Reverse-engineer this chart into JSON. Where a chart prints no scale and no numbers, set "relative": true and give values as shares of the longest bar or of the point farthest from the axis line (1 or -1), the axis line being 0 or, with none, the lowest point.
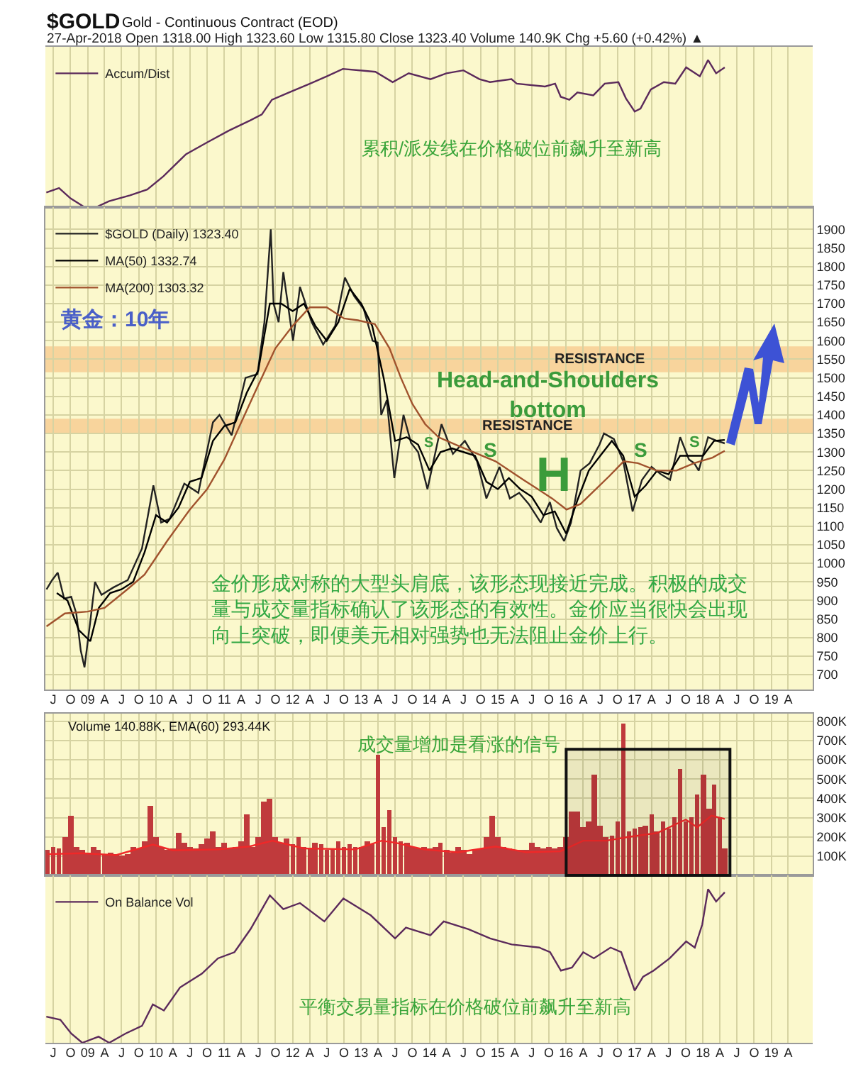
{
  "chart_data": [
    {
      "type": "line",
      "title": "$GOLD",
      "subtitle": "Gold - Continuous Contract (EOD)",
      "annotations": [
        "27-Apr-2018 Open 1318.00 High 1323.60 Low 1315.80 Close 1323.40 Volume 140.9K Chg +5.60 (+0.42%) ▲",
        "累积/派发线在价格破位前飙升至新高"
      ],
      "relative": true,
      "x": [
        "2008-05-25",
        "2008-08-01",
        "2008-10-01",
        "2008-12-15",
        "2009-02-15",
        "2009-04-25",
        "2009-08-15",
        "2009-11-15",
        "2010-02-10",
        "2010-06-10",
        "2010-10-01",
        "2011-01-25",
        "2011-05-20",
        "2011-07-20",
        "2011-09-12",
        "2011-12-12",
        "2012-04-03",
        "2012-07-03",
        "2012-09-25",
        "2012-12-25",
        "2013-03-18",
        "2013-06-18",
        "2013-09-12",
        "2014-01-06",
        "2014-04-01",
        "2014-07-01",
        "2014-09-25",
        "2014-11-20",
        "2015-03-15",
        "2015-04-12",
        "2015-09-10",
        "2015-11-03",
        "2015-12-03",
        "2016-01-18",
        "2016-03-01",
        "2016-05-25",
        "2016-07-25",
        "2016-10-06",
        "2016-11-15",
        "2017-01-01",
        "2017-02-01",
        "2017-03-28",
        "2017-06-06",
        "2017-08-06",
        "2017-10-03",
        "2017-12-15",
        "2018-01-28",
        "2018-03-12",
        "2018-04-27"
      ],
      "series": [
        {
          "name": "Accum/Dist",
          "color": "#5b2a5b",
          "values": [
            0.1,
            0.13,
            0.06,
            0,
            0,
            0.04,
            0.08,
            0.12,
            0.21,
            0.36,
            0.44,
            0.52,
            0.59,
            0.63,
            0.73,
            0.78,
            0.84,
            0.89,
            0.94,
            0.93,
            0.92,
            0.85,
            0.91,
            0.87,
            0.91,
            0.93,
            0.87,
            0.85,
            0.87,
            0.84,
            0.82,
            0.84,
            0.75,
            0.73,
            0.78,
            0.76,
            0.84,
            0.85,
            0.74,
            0.65,
            0.67,
            0.8,
            0.85,
            0.84,
            0.95,
            0.89,
            1,
            0.91,
            0.95
          ]
        }
      ],
      "xlim": [
        "2008-05-20",
        "2019-08-10"
      ],
      "xticks": [
        {
          "value": "2008-07",
          "label": "J"
        },
        {
          "value": "2008-10",
          "label": "O"
        },
        {
          "value": "2009-01",
          "label": "09"
        },
        {
          "value": "2009-04",
          "label": "A"
        },
        {
          "value": "2009-07",
          "label": "J"
        },
        {
          "value": "2009-10",
          "label": "O"
        },
        {
          "value": "2010-01",
          "label": "10"
        },
        {
          "value": "2010-04",
          "label": "A"
        },
        {
          "value": "2010-07",
          "label": "J"
        },
        {
          "value": "2010-10",
          "label": "O"
        },
        {
          "value": "2011-01",
          "label": "11"
        },
        {
          "value": "2011-04",
          "label": "A"
        },
        {
          "value": "2011-07",
          "label": "J"
        },
        {
          "value": "2011-10",
          "label": "O"
        },
        {
          "value": "2012-01",
          "label": "12"
        },
        {
          "value": "2012-04",
          "label": "A"
        },
        {
          "value": "2012-07",
          "label": "J"
        },
        {
          "value": "2012-10",
          "label": "O"
        },
        {
          "value": "2013-01",
          "label": "13"
        },
        {
          "value": "2013-04",
          "label": "A"
        },
        {
          "value": "2013-07",
          "label": "J"
        },
        {
          "value": "2013-10",
          "label": "O"
        },
        {
          "value": "2014-01",
          "label": "14"
        },
        {
          "value": "2014-04",
          "label": "A"
        },
        {
          "value": "2014-07",
          "label": "J"
        },
        {
          "value": "2014-10",
          "label": "O"
        },
        {
          "value": "2015-01",
          "label": "15"
        },
        {
          "value": "2015-04",
          "label": "A"
        },
        {
          "value": "2015-07",
          "label": "J"
        },
        {
          "value": "2015-10",
          "label": "O"
        },
        {
          "value": "2016-01",
          "label": "16"
        },
        {
          "value": "2016-04",
          "label": "A"
        },
        {
          "value": "2016-07",
          "label": "J"
        },
        {
          "value": "2016-10",
          "label": "O"
        },
        {
          "value": "2017-01",
          "label": "17"
        },
        {
          "value": "2017-04",
          "label": "A"
        },
        {
          "value": "2017-07",
          "label": "J"
        },
        {
          "value": "2017-10",
          "label": "O"
        },
        {
          "value": "2018-01",
          "label": "18"
        },
        {
          "value": "2018-04",
          "label": "A"
        },
        {
          "value": "2018-07",
          "label": "J"
        },
        {
          "value": "2018-10",
          "label": "O"
        },
        {
          "value": "2019-01",
          "label": "19"
        },
        {
          "value": "2019-04",
          "label": "A"
        }
      ],
      "grid": "x",
      "legend": "top left",
      "tick_labels": false
    },
    {
      "type": "line",
      "annotations": [
        "黄金：10年",
        "Head-and-Shoulders\nbottom",
        "S",
        "S",
        "H",
        "S",
        "S",
        "金价形成对称的大型头肩底，该形态现接近完成。积极的成交量与成交量指标确认了该形态的有效性。金价应当很快会出现向上突破，即便美元相对强势也无法阻止金价上行。"
      ],
      "series": [
        {
          "name": "$GOLD (Daily) 1323.40",
          "color": "#222222",
          "x": [
            "2008-05-26",
            "2008-06-25",
            "2008-07-25",
            "2008-08-28",
            "2008-10-05",
            "2008-11-01",
            "2008-11-25",
            "2008-12-15",
            "2009-01-14",
            "2009-02-09",
            "2009-03-16",
            "2009-05-18",
            "2009-08-03",
            "2009-10-18",
            "2009-12-18",
            "2010-01-28",
            "2010-03-15",
            "2010-06-01",
            "2010-08-15",
            "2010-11-01",
            "2010-12-06",
            "2011-02-09",
            "2011-04-24",
            "2011-06-27",
            "2011-08-03",
            "2011-09-06",
            "2011-09-21",
            "2011-10-18",
            "2011-11-12",
            "2012-01-03",
            "2012-02-09",
            "2012-04-12",
            "2012-06-12",
            "2012-08-15",
            "2012-10-06",
            "2012-11-25",
            "2013-01-15",
            "2013-03-03",
            "2013-03-30",
            "2013-04-18",
            "2013-05-18",
            "2013-06-27",
            "2013-08-15",
            "2013-09-24",
            "2013-11-01",
            "2013-12-21",
            "2014-03-06",
            "2014-05-06",
            "2014-07-09",
            "2014-09-12",
            "2014-11-01",
            "2015-01-10",
            "2015-03-06",
            "2015-04-25",
            "2015-06-15",
            "2015-08-18",
            "2015-10-06",
            "2015-11-12",
            "2015-12-21",
            "2016-01-27",
            "2016-03-18",
            "2016-05-06",
            "2016-06-27",
            "2016-07-21",
            "2016-09-12",
            "2016-11-01",
            "2016-12-21",
            "2017-02-09",
            "2017-04-01",
            "2017-05-21",
            "2017-07-09",
            "2017-09-01",
            "2017-10-18",
            "2017-11-15",
            "2017-12-09",
            "2018-01-28",
            "2018-03-18",
            "2018-04-27"
          ],
          "values": [
            930,
            955,
            975,
            905,
            910,
            865,
            765,
            720,
            840,
            950,
            915,
            935,
            955,
            1040,
            1210,
            1110,
            1120,
            1215,
            1190,
            1380,
            1400,
            1345,
            1500,
            1510,
            1650,
            1900,
            1700,
            1650,
            1785,
            1600,
            1745,
            1650,
            1590,
            1640,
            1770,
            1720,
            1685,
            1600,
            1595,
            1400,
            1440,
            1230,
            1400,
            1325,
            1300,
            1200,
            1375,
            1295,
            1330,
            1275,
            1175,
            1260,
            1175,
            1190,
            1160,
            1110,
            1165,
            1095,
            1060,
            1110,
            1250,
            1270,
            1320,
            1350,
            1335,
            1275,
            1140,
            1225,
            1260,
            1240,
            1225,
            1340,
            1280,
            1270,
            1250,
            1340,
            1330,
            1323.4
          ]
        },
        {
          "name": "MA(50) 1332.74",
          "color": "#000000",
          "x": [
            "2008-07-20",
            "2008-09-15",
            "2008-11-15",
            "2009-01-15",
            "2009-03-01",
            "2009-05-01",
            "2009-07-01",
            "2009-09-01",
            "2009-11-01",
            "2010-01-01",
            "2010-03-01",
            "2010-05-01",
            "2010-07-01",
            "2010-09-01",
            "2010-11-01",
            "2011-01-01",
            "2011-03-01",
            "2011-05-01",
            "2011-07-01",
            "2011-09-01",
            "2011-11-01",
            "2012-01-01",
            "2012-03-01",
            "2012-05-01",
            "2012-07-01",
            "2012-09-01",
            "2012-11-01",
            "2013-01-01",
            "2013-03-01",
            "2013-05-01",
            "2013-07-01",
            "2013-09-01",
            "2013-11-01",
            "2014-01-01",
            "2014-03-01",
            "2014-05-01",
            "2014-07-01",
            "2014-09-01",
            "2014-11-01",
            "2015-01-01",
            "2015-03-01",
            "2015-05-01",
            "2015-07-01",
            "2015-09-01",
            "2015-11-01",
            "2016-01-01",
            "2016-03-01",
            "2016-05-01",
            "2016-07-01",
            "2016-09-01",
            "2016-11-01",
            "2017-01-01",
            "2017-03-01",
            "2017-05-01",
            "2017-07-01",
            "2017-09-01",
            "2017-11-01",
            "2018-01-01",
            "2018-03-01",
            "2018-04-27"
          ],
          "values": [
            920,
            900,
            820,
            790,
            880,
            920,
            930,
            950,
            1030,
            1130,
            1110,
            1150,
            1220,
            1230,
            1330,
            1370,
            1380,
            1460,
            1520,
            1700,
            1700,
            1680,
            1700,
            1640,
            1600,
            1650,
            1740,
            1700,
            1640,
            1500,
            1330,
            1340,
            1320,
            1250,
            1300,
            1310,
            1300,
            1290,
            1220,
            1200,
            1230,
            1200,
            1180,
            1130,
            1140,
            1080,
            1170,
            1250,
            1290,
            1330,
            1290,
            1180,
            1210,
            1250,
            1240,
            1290,
            1290,
            1290,
            1330,
            1332.74
          ]
        },
        {
          "name": "MA(200) 1303.32",
          "color": "#a0522d",
          "x": [
            "2008-05-26",
            "2008-09-01",
            "2009-01-01",
            "2009-04-01",
            "2009-08-01",
            "2009-11-01",
            "2010-03-01",
            "2010-07-01",
            "2010-10-01",
            "2011-01-01",
            "2011-04-01",
            "2011-07-01",
            "2011-10-01",
            "2012-01-01",
            "2012-04-01",
            "2012-07-01",
            "2012-10-01",
            "2012-12-15",
            "2013-03-15",
            "2013-06-01",
            "2013-08-01",
            "2013-10-01",
            "2013-12-09",
            "2014-02-18",
            "2014-06-12",
            "2014-12-20",
            "2015-05-18",
            "2015-10-18",
            "2016-01-03",
            "2016-03-18",
            "2016-08-18",
            "2016-11-03",
            "2017-01-18",
            "2017-04-28",
            "2017-08-12",
            "2017-11-15",
            "2018-02-21",
            "2018-04-27"
          ],
          "values": [
            830,
            865,
            870,
            880,
            930,
            970,
            1060,
            1145,
            1200,
            1280,
            1380,
            1480,
            1580,
            1640,
            1690,
            1690,
            1660,
            1655,
            1645,
            1580,
            1500,
            1430,
            1375,
            1340,
            1315,
            1275,
            1225,
            1175,
            1145,
            1160,
            1235,
            1275,
            1270,
            1250,
            1250,
            1270,
            1285,
            1303.32
          ]
        }
      ],
      "bands": [
        {
          "axis": "y",
          "from": 1515,
          "to": 1585,
          "label": "RESISTANCE",
          "color": "#f8d49c"
        },
        {
          "axis": "y",
          "from": 1350,
          "to": 1390,
          "label": "RESISTANCE",
          "color": "#f8d49c"
        }
      ],
      "xlim": [
        "2008-05-20",
        "2019-08-10"
      ],
      "xticks": [
        {
          "value": "2008-07",
          "label": "J"
        },
        {
          "value": "2008-10",
          "label": "O"
        },
        {
          "value": "2009-01",
          "label": "09"
        },
        {
          "value": "2009-04",
          "label": "A"
        },
        {
          "value": "2009-07",
          "label": "J"
        },
        {
          "value": "2009-10",
          "label": "O"
        },
        {
          "value": "2010-01",
          "label": "10"
        },
        {
          "value": "2010-04",
          "label": "A"
        },
        {
          "value": "2010-07",
          "label": "J"
        },
        {
          "value": "2010-10",
          "label": "O"
        },
        {
          "value": "2011-01",
          "label": "11"
        },
        {
          "value": "2011-04",
          "label": "A"
        },
        {
          "value": "2011-07",
          "label": "J"
        },
        {
          "value": "2011-10",
          "label": "O"
        },
        {
          "value": "2012-01",
          "label": "12"
        },
        {
          "value": "2012-04",
          "label": "A"
        },
        {
          "value": "2012-07",
          "label": "J"
        },
        {
          "value": "2012-10",
          "label": "O"
        },
        {
          "value": "2013-01",
          "label": "13"
        },
        {
          "value": "2013-04",
          "label": "A"
        },
        {
          "value": "2013-07",
          "label": "J"
        },
        {
          "value": "2013-10",
          "label": "O"
        },
        {
          "value": "2014-01",
          "label": "14"
        },
        {
          "value": "2014-04",
          "label": "A"
        },
        {
          "value": "2014-07",
          "label": "J"
        },
        {
          "value": "2014-10",
          "label": "O"
        },
        {
          "value": "2015-01",
          "label": "15"
        },
        {
          "value": "2015-04",
          "label": "A"
        },
        {
          "value": "2015-07",
          "label": "J"
        },
        {
          "value": "2015-10",
          "label": "O"
        },
        {
          "value": "2016-01",
          "label": "16"
        },
        {
          "value": "2016-04",
          "label": "A"
        },
        {
          "value": "2016-07",
          "label": "J"
        },
        {
          "value": "2016-10",
          "label": "O"
        },
        {
          "value": "2017-01",
          "label": "17"
        },
        {
          "value": "2017-04",
          "label": "A"
        },
        {
          "value": "2017-07",
          "label": "J"
        },
        {
          "value": "2017-10",
          "label": "O"
        },
        {
          "value": "2018-01",
          "label": "18"
        },
        {
          "value": "2018-04",
          "label": "A"
        },
        {
          "value": "2018-07",
          "label": "J"
        },
        {
          "value": "2018-10",
          "label": "O"
        },
        {
          "value": "2019-01",
          "label": "19"
        },
        {
          "value": "2019-04",
          "label": "A"
        }
      ],
      "ylim": [
        660,
        1960
      ],
      "yticks": [
        700,
        750,
        800,
        850,
        900,
        950,
        1000,
        1050,
        1100,
        1150,
        1200,
        1250,
        1300,
        1350,
        1400,
        1450,
        1500,
        1550,
        1600,
        1650,
        1700,
        1750,
        1800,
        1850,
        1900
      ],
      "grid": true,
      "legend": "top left"
    },
    {
      "type": "bar",
      "title": "Volume 140.88K, EMA(60) 293.44K",
      "annotations": [
        "成交量增加是看涨的信号"
      ],
      "series": [
        {
          "type": "bar",
          "color": "#c03a3c",
          "x": [
            "2008-06",
            "2008-07",
            "2008-08",
            "2008-09",
            "2008-10",
            "2008-11",
            "2008-12",
            "2009-01",
            "2009-02",
            "2009-03",
            "2009-04",
            "2009-05",
            "2009-06",
            "2009-07",
            "2009-08",
            "2009-09",
            "2009-10",
            "2009-11",
            "2009-12",
            "2010-01",
            "2010-02",
            "2010-03",
            "2010-04",
            "2010-05",
            "2010-06",
            "2010-07",
            "2010-08",
            "2010-09",
            "2010-10",
            "2010-11",
            "2010-12",
            "2011-01",
            "2011-02",
            "2011-03",
            "2011-04",
            "2011-05",
            "2011-06",
            "2011-07",
            "2011-08",
            "2011-09",
            "2011-10",
            "2011-11",
            "2011-12",
            "2012-01",
            "2012-02",
            "2012-03",
            "2012-04",
            "2012-05",
            "2012-06",
            "2012-07",
            "2012-08",
            "2012-09",
            "2012-10",
            "2012-11",
            "2012-12",
            "2013-01",
            "2013-02",
            "2013-03",
            "2013-04",
            "2013-05",
            "2013-06",
            "2013-07",
            "2013-08",
            "2013-09",
            "2013-10",
            "2013-11",
            "2013-12",
            "2014-01",
            "2014-02",
            "2014-03",
            "2014-04",
            "2014-05",
            "2014-06",
            "2014-07",
            "2014-08",
            "2014-09",
            "2014-10",
            "2014-11",
            "2014-12",
            "2015-01",
            "2015-02",
            "2015-03",
            "2015-04",
            "2015-05",
            "2015-06",
            "2015-07",
            "2015-08",
            "2015-09",
            "2015-10",
            "2015-11",
            "2015-12",
            "2016-01",
            "2016-02",
            "2016-03",
            "2016-04",
            "2016-05",
            "2016-06",
            "2016-07",
            "2016-08",
            "2016-09",
            "2016-10",
            "2016-11",
            "2016-12",
            "2017-01",
            "2017-02",
            "2017-03",
            "2017-04",
            "2017-05",
            "2017-06",
            "2017-07",
            "2017-08",
            "2017-09",
            "2017-10",
            "2017-11",
            "2017-12",
            "2018-01",
            "2018-02",
            "2018-03",
            "2018-04",
            "2018-04-27"
          ],
          "values": [
            130000,
            150000,
            140000,
            200000,
            310000,
            150000,
            130000,
            120000,
            150000,
            130000,
            110000,
            120000,
            110000,
            100000,
            110000,
            150000,
            140000,
            180000,
            360000,
            200000,
            150000,
            130000,
            140000,
            220000,
            170000,
            150000,
            140000,
            160000,
            190000,
            230000,
            150000,
            170000,
            140000,
            150000,
            180000,
            320000,
            150000,
            200000,
            380000,
            400000,
            200000,
            170000,
            190000,
            160000,
            200000,
            150000,
            140000,
            170000,
            160000,
            130000,
            140000,
            180000,
            150000,
            160000,
            150000,
            150000,
            180000,
            160000,
            630000,
            250000,
            340000,
            200000,
            180000,
            170000,
            150000,
            140000,
            150000,
            140000,
            150000,
            170000,
            130000,
            120000,
            150000,
            130000,
            110000,
            130000,
            140000,
            200000,
            310000,
            200000,
            150000,
            140000,
            130000,
            130000,
            130000,
            170000,
            150000,
            140000,
            150000,
            140000,
            150000,
            200000,
            330000,
            330000,
            250000,
            280000,
            520000,
            260000,
            200000,
            210000,
            280000,
            790000,
            230000,
            240000,
            250000,
            260000,
            320000,
            230000,
            280000,
            240000,
            300000,
            550000,
            280000,
            300000,
            420000,
            520000,
            350000,
            470000,
            300000,
            140880
          ]
        },
        {
          "type": "line",
          "color": "#f02828",
          "x": [
            "2008-06-01",
            "2008-12-01",
            "2009-06-01",
            "2009-12-15",
            "2010-04-01",
            "2010-12-01",
            "2011-05-15",
            "2011-09-15",
            "2012-03-01",
            "2012-12-01",
            "2013-04-20",
            "2013-07-01",
            "2013-12-01",
            "2014-06-01",
            "2014-12-20",
            "2015-06-01",
            "2015-12-01",
            "2016-04-01",
            "2016-08-01",
            "2016-12-01",
            "2017-05-01",
            "2017-10-01",
            "2017-12-01",
            "2018-02-15",
            "2018-04-27"
          ],
          "values": [
            110000,
            115000,
            105000,
            160000,
            130000,
            135000,
            150000,
            180000,
            140000,
            135000,
            180000,
            170000,
            135000,
            120000,
            150000,
            120000,
            125000,
            180000,
            180000,
            200000,
            220000,
            290000,
            250000,
            310000,
            293440
          ]
        }
      ],
      "bands": [
        {
          "axis": "x",
          "from": "2016-01-01",
          "to": "2018-05-25",
          "color": "#111111"
        }
      ],
      "xlim": [
        "2008-05-20",
        "2019-08-10"
      ],
      "xticks": [
        {
          "value": "2008-07",
          "label": "J"
        },
        {
          "value": "2008-10",
          "label": "O"
        },
        {
          "value": "2009-01",
          "label": "09"
        },
        {
          "value": "2009-04",
          "label": "A"
        },
        {
          "value": "2009-07",
          "label": "J"
        },
        {
          "value": "2009-10",
          "label": "O"
        },
        {
          "value": "2010-01",
          "label": "10"
        },
        {
          "value": "2010-04",
          "label": "A"
        },
        {
          "value": "2010-07",
          "label": "J"
        },
        {
          "value": "2010-10",
          "label": "O"
        },
        {
          "value": "2011-01",
          "label": "11"
        },
        {
          "value": "2011-04",
          "label": "A"
        },
        {
          "value": "2011-07",
          "label": "J"
        },
        {
          "value": "2011-10",
          "label": "O"
        },
        {
          "value": "2012-01",
          "label": "12"
        },
        {
          "value": "2012-04",
          "label": "A"
        },
        {
          "value": "2012-07",
          "label": "J"
        },
        {
          "value": "2012-10",
          "label": "O"
        },
        {
          "value": "2013-01",
          "label": "13"
        },
        {
          "value": "2013-04",
          "label": "A"
        },
        {
          "value": "2013-07",
          "label": "J"
        },
        {
          "value": "2013-10",
          "label": "O"
        },
        {
          "value": "2014-01",
          "label": "14"
        },
        {
          "value": "2014-04",
          "label": "A"
        },
        {
          "value": "2014-07",
          "label": "J"
        },
        {
          "value": "2014-10",
          "label": "O"
        },
        {
          "value": "2015-01",
          "label": "15"
        },
        {
          "value": "2015-04",
          "label": "A"
        },
        {
          "value": "2015-07",
          "label": "J"
        },
        {
          "value": "2015-10",
          "label": "O"
        },
        {
          "value": "2016-01",
          "label": "16"
        },
        {
          "value": "2016-04",
          "label": "A"
        },
        {
          "value": "2016-07",
          "label": "J"
        },
        {
          "value": "2016-10",
          "label": "O"
        },
        {
          "value": "2017-01",
          "label": "17"
        },
        {
          "value": "2017-04",
          "label": "A"
        },
        {
          "value": "2017-07",
          "label": "J"
        },
        {
          "value": "2017-10",
          "label": "O"
        },
        {
          "value": "2018-01",
          "label": "18"
        },
        {
          "value": "2018-04",
          "label": "A"
        },
        {
          "value": "2018-07",
          "label": "J"
        },
        {
          "value": "2018-10",
          "label": "O"
        },
        {
          "value": "2019-01",
          "label": "19"
        },
        {
          "value": "2019-04",
          "label": "A"
        }
      ],
      "ylim": [
        0,
        840000
      ],
      "yticks": [
        {
          "value": 100000,
          "label": "100K"
        },
        {
          "value": 200000,
          "label": "200K"
        },
        {
          "value": 300000,
          "label": "300K"
        },
        {
          "value": 400000,
          "label": "400K"
        },
        {
          "value": 500000,
          "label": "500K"
        },
        {
          "value": 600000,
          "label": "600K"
        },
        {
          "value": 700000,
          "label": "700K"
        },
        {
          "value": 800000,
          "label": "800K"
        }
      ],
      "grid": true,
      "tick_labels": "y"
    },
    {
      "type": "line",
      "relative": true,
      "annotations": [
        "平衡交易量指标在价格破位前飙升至新高"
      ],
      "x": [
        "2008-05-25",
        "2008-08-08",
        "2008-10-05",
        "2008-12-03",
        "2009-02-28",
        "2009-04-26",
        "2009-07-22",
        "2009-10-18",
        "2009-12-15",
        "2010-02-12",
        "2010-05-09",
        "2010-09-03",
        "2010-11-28",
        "2011-02-24",
        "2011-05-21",
        "2011-09-01",
        "2011-11-12",
        "2012-02-09",
        "2012-06-18",
        "2012-09-28",
        "2013-02-21",
        "2013-07-01",
        "2013-08-28",
        "2014-01-06",
        "2014-03-18",
        "2014-07-28",
        "2014-11-21",
        "2015-03-16",
        "2015-08-10",
        "2015-10-07",
        "2015-12-04",
        "2016-02-01",
        "2016-04-01",
        "2016-05-28",
        "2016-08-25",
        "2016-10-21",
        "2017-01-01",
        "2017-02-15",
        "2017-04-12",
        "2017-07-07",
        "2017-10-03",
        "2017-11-18",
        "2017-12-28",
        "2018-01-28",
        "2018-03-12",
        "2018-04-27"
      ],
      "series": [
        {
          "name": "On Balance Vol",
          "color": "#5b2a5b",
          "values": [
            0.17,
            0.15,
            0.06,
            0,
            0.04,
            0,
            0.06,
            0.11,
            0.25,
            0.21,
            0.36,
            0.45,
            0.55,
            0.59,
            0.74,
            0.96,
            0.87,
            0.91,
            0.79,
            0.94,
            0.83,
            0.68,
            0.75,
            0.7,
            0.79,
            0.74,
            0.68,
            0.64,
            0.62,
            0.59,
            0.47,
            0.49,
            0.59,
            0.55,
            0.62,
            0.59,
            0.34,
            0.43,
            0.47,
            0.55,
            0.66,
            0.62,
            0.77,
            1,
            0.92,
            0.98
          ]
        }
      ],
      "xlim": [
        "2008-05-20",
        "2019-08-10"
      ],
      "xticks": [
        {
          "value": "2008-07",
          "label": "J"
        },
        {
          "value": "2008-10",
          "label": "O"
        },
        {
          "value": "2009-01",
          "label": "09"
        },
        {
          "value": "2009-04",
          "label": "A"
        },
        {
          "value": "2009-07",
          "label": "J"
        },
        {
          "value": "2009-10",
          "label": "O"
        },
        {
          "value": "2010-01",
          "label": "10"
        },
        {
          "value": "2010-04",
          "label": "A"
        },
        {
          "value": "2010-07",
          "label": "J"
        },
        {
          "value": "2010-10",
          "label": "O"
        },
        {
          "value": "2011-01",
          "label": "11"
        },
        {
          "value": "2011-04",
          "label": "A"
        },
        {
          "value": "2011-07",
          "label": "J"
        },
        {
          "value": "2011-10",
          "label": "O"
        },
        {
          "value": "2012-01",
          "label": "12"
        },
        {
          "value": "2012-04",
          "label": "A"
        },
        {
          "value": "2012-07",
          "label": "J"
        },
        {
          "value": "2012-10",
          "label": "O"
        },
        {
          "value": "2013-01",
          "label": "13"
        },
        {
          "value": "2013-04",
          "label": "A"
        },
        {
          "value": "2013-07",
          "label": "J"
        },
        {
          "value": "2013-10",
          "label": "O"
        },
        {
          "value": "2014-01",
          "label": "14"
        },
        {
          "value": "2014-04",
          "label": "A"
        },
        {
          "value": "2014-07",
          "label": "J"
        },
        {
          "value": "2014-10",
          "label": "O"
        },
        {
          "value": "2015-01",
          "label": "15"
        },
        {
          "value": "2015-04",
          "label": "A"
        },
        {
          "value": "2015-07",
          "label": "J"
        },
        {
          "value": "2015-10",
          "label": "O"
        },
        {
          "value": "2016-01",
          "label": "16"
        },
        {
          "value": "2016-04",
          "label": "A"
        },
        {
          "value": "2016-07",
          "label": "J"
        },
        {
          "value": "2016-10",
          "label": "O"
        },
        {
          "value": "2017-01",
          "label": "17"
        },
        {
          "value": "2017-04",
          "label": "A"
        },
        {
          "value": "2017-07",
          "label": "J"
        },
        {
          "value": "2017-10",
          "label": "O"
        },
        {
          "value": "2018-01",
          "label": "18"
        },
        {
          "value": "2018-04",
          "label": "A"
        },
        {
          "value": "2018-07",
          "label": "J"
        },
        {
          "value": "2018-10",
          "label": "O"
        },
        {
          "value": "2019-01",
          "label": "19"
        },
        {
          "value": "2019-04",
          "label": "A"
        }
      ],
      "grid": "x",
      "legend": "top left",
      "tick_labels": "x"
    }
  ]
}
